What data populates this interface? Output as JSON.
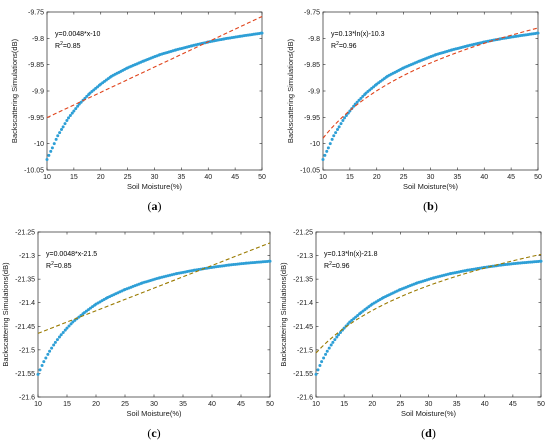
{
  "chart_data": [
    {
      "type": "scatter",
      "panel_label": "a",
      "xlabel": "Soil Moisture(%)",
      "ylabel": "Backscattering Simulations(dB)",
      "xlim": [
        10,
        50
      ],
      "ylim": [
        -10.05,
        -9.75
      ],
      "xticks": [
        10,
        15,
        20,
        25,
        30,
        35,
        40,
        45,
        50
      ],
      "yticks": [
        "-9.75",
        "-9.8",
        "-9.85",
        "-9.9",
        "-9.95",
        "-10",
        "-10.05"
      ],
      "ytick_values": [
        -9.75,
        -9.8,
        -9.85,
        -9.9,
        -9.95,
        -10,
        -10.05
      ],
      "equation": "y=0.0048*x-10",
      "r2_label": "R",
      "r2_sup": "2",
      "r2_value": "=0.85",
      "fit": {
        "kind": "linear",
        "slope": 0.0048,
        "intercept": -9.9985
      },
      "series": [
        {
          "x": [
            10,
            11,
            12,
            13,
            14,
            15,
            16,
            18,
            20,
            22,
            25,
            28,
            31,
            34,
            37,
            40,
            43,
            46,
            50
          ],
          "y": [
            -10.03,
            -10.008,
            -9.985,
            -9.968,
            -9.951,
            -9.938,
            -9.925,
            -9.904,
            -9.887,
            -9.872,
            -9.856,
            -9.843,
            -9.831,
            -9.822,
            -9.814,
            -9.807,
            -9.801,
            -9.796,
            -9.79
          ]
        }
      ],
      "colors": {
        "points": "#2e9fd6",
        "fit": "#e0441c"
      }
    },
    {
      "type": "scatter",
      "panel_label": "b",
      "xlabel": "Soil Moisture(%)",
      "ylabel": "Backscattering Simulations(dB)",
      "xlim": [
        10,
        50
      ],
      "ylim": [
        -10.05,
        -9.75
      ],
      "xticks": [
        10,
        15,
        20,
        25,
        30,
        35,
        40,
        45,
        50
      ],
      "yticks": [
        "-9.75",
        "-9.8",
        "-9.85",
        "-9.9",
        "-9.95",
        "-10",
        "-10.05"
      ],
      "ytick_values": [
        -9.75,
        -9.8,
        -9.85,
        -9.9,
        -9.95,
        -10,
        -10.05
      ],
      "equation": "y=0.13*ln(x)-10.3",
      "r2_label": "R",
      "r2_sup": "2",
      "r2_value": "=0.96",
      "fit": {
        "kind": "log",
        "a": 0.13,
        "b": -10.289
      },
      "series": [
        {
          "x": [
            10,
            11,
            12,
            13,
            14,
            15,
            16,
            18,
            20,
            22,
            25,
            28,
            31,
            34,
            37,
            40,
            43,
            46,
            50
          ],
          "y": [
            -10.03,
            -10.008,
            -9.985,
            -9.968,
            -9.951,
            -9.938,
            -9.925,
            -9.904,
            -9.887,
            -9.872,
            -9.856,
            -9.843,
            -9.831,
            -9.822,
            -9.814,
            -9.807,
            -9.801,
            -9.796,
            -9.79
          ]
        }
      ],
      "colors": {
        "points": "#2e9fd6",
        "fit": "#e0441c"
      }
    },
    {
      "type": "scatter",
      "panel_label": "c",
      "xlabel": "Soil Moisture(%)",
      "ylabel": "Backscattering Simulations(dB)",
      "xlim": [
        10,
        50
      ],
      "ylim": [
        -21.6,
        -21.25
      ],
      "xticks": [
        10,
        15,
        20,
        25,
        30,
        35,
        40,
        45,
        50
      ],
      "yticks": [
        "-21.25",
        "-21.3",
        "-21.35",
        "-21.4",
        "-21.45",
        "-21.5",
        "-21.55",
        "-21.6"
      ],
      "ytick_values": [
        -21.25,
        -21.3,
        -21.35,
        -21.4,
        -21.45,
        -21.5,
        -21.55,
        -21.6
      ],
      "equation": "y=0.0048*x-21.5",
      "r2_label": "R",
      "r2_sup": "2",
      "r2_value": "=0.85",
      "fit": {
        "kind": "linear",
        "slope": 0.0048,
        "intercept": -21.513
      },
      "series": [
        {
          "x": [
            10,
            11,
            12,
            13,
            14,
            15,
            16,
            18,
            20,
            22,
            25,
            28,
            31,
            34,
            37,
            40,
            43,
            46,
            50
          ],
          "y": [
            -21.552,
            -21.525,
            -21.503,
            -21.484,
            -21.468,
            -21.454,
            -21.441,
            -21.421,
            -21.403,
            -21.389,
            -21.372,
            -21.358,
            -21.347,
            -21.338,
            -21.331,
            -21.325,
            -21.32,
            -21.316,
            -21.312
          ]
        }
      ],
      "colors": {
        "points": "#2e9fd6",
        "fit": "#9a7a00"
      }
    },
    {
      "type": "scatter",
      "panel_label": "d",
      "xlabel": "Soil Moisture(%)",
      "ylabel": "Backscattering Simulations(dB)",
      "xlim": [
        10,
        50
      ],
      "ylim": [
        -21.6,
        -21.25
      ],
      "xticks": [
        10,
        15,
        20,
        25,
        30,
        35,
        40,
        45,
        50
      ],
      "yticks": [
        "-21.25",
        "-21.3",
        "-21.35",
        "-21.4",
        "-21.45",
        "-21.5",
        "-21.55",
        "-21.6"
      ],
      "ytick_values": [
        -21.25,
        -21.3,
        -21.35,
        -21.4,
        -21.45,
        -21.5,
        -21.55,
        -21.6
      ],
      "equation": "y=0.13*ln(x)-21.8",
      "r2_label": "R",
      "r2_sup": "2",
      "r2_value": "=0.96",
      "fit": {
        "kind": "log",
        "a": 0.13,
        "b": -21.806
      },
      "series": [
        {
          "x": [
            10,
            11,
            12,
            13,
            14,
            15,
            16,
            18,
            20,
            22,
            25,
            28,
            31,
            34,
            37,
            40,
            43,
            46,
            50
          ],
          "y": [
            -21.552,
            -21.525,
            -21.503,
            -21.484,
            -21.468,
            -21.454,
            -21.441,
            -21.421,
            -21.403,
            -21.389,
            -21.372,
            -21.358,
            -21.347,
            -21.338,
            -21.331,
            -21.325,
            -21.32,
            -21.316,
            -21.312
          ]
        }
      ],
      "colors": {
        "points": "#2e9fd6",
        "fit": "#9a7a00"
      }
    }
  ]
}
